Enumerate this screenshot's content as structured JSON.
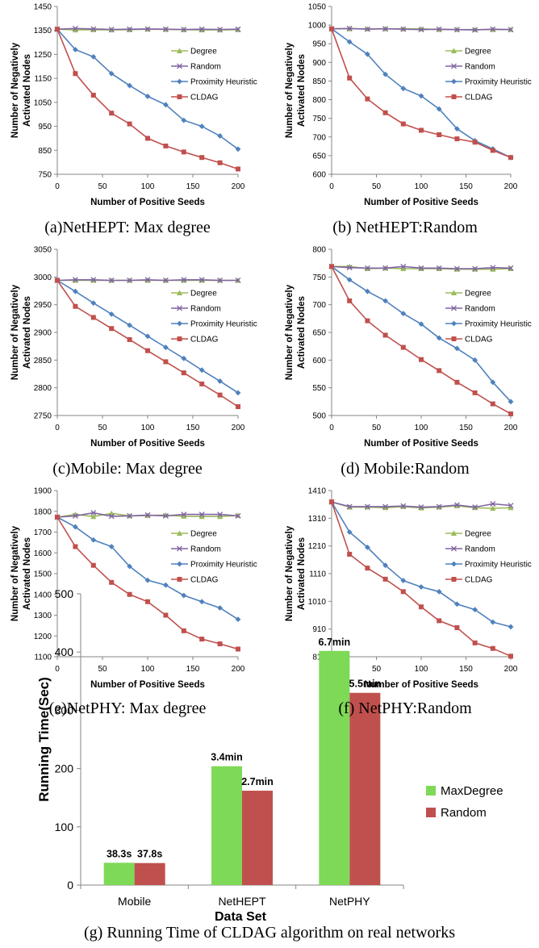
{
  "colors": {
    "Degree": "#9bbb59",
    "Random": "#8064a2",
    "Proximity Heuristic": "#4f81bd",
    "CLDAG": "#c0504d",
    "MaxDegree": "#7ed957",
    "RandomBar": "#c0504d"
  },
  "chart_data": [
    {
      "type": "line",
      "caption": "(a)NetHEPT: Max degree",
      "xlabel": "Number of Positive Seeds",
      "ylabel": [
        "Number of Negatively",
        "Activated Nodes"
      ],
      "xticks": [
        0,
        50,
        100,
        150,
        200
      ],
      "yticks": [
        750,
        850,
        950,
        1050,
        1150,
        1250,
        1350,
        1450
      ],
      "xlim": [
        0,
        200
      ],
      "ylim": [
        750,
        1450
      ],
      "x": [
        0,
        20,
        40,
        60,
        80,
        100,
        120,
        140,
        160,
        180,
        200
      ],
      "legend_position": "right",
      "series": [
        {
          "name": "Degree",
          "marker": "triangle",
          "values": [
            1355,
            1352,
            1353,
            1352,
            1353,
            1355,
            1354,
            1353,
            1352,
            1352,
            1353
          ]
        },
        {
          "name": "Random",
          "marker": "x",
          "values": [
            1355,
            1358,
            1356,
            1354,
            1355,
            1356,
            1355,
            1354,
            1355,
            1354,
            1355
          ]
        },
        {
          "name": "Proximity Heuristic",
          "marker": "diamond",
          "values": [
            1355,
            1270,
            1240,
            1170,
            1120,
            1075,
            1040,
            975,
            950,
            910,
            855
          ]
        },
        {
          "name": "CLDAG",
          "marker": "square",
          "values": [
            1355,
            1170,
            1080,
            1005,
            960,
            900,
            868,
            843,
            820,
            798,
            772
          ]
        }
      ]
    },
    {
      "type": "line",
      "caption": "(b) NetHEPT:Random",
      "xlabel": "Number of Positive Seeds",
      "ylabel": [
        "Number of Negatively",
        "Activated Nodes"
      ],
      "xticks": [
        0,
        50,
        100,
        150,
        200
      ],
      "yticks": [
        600,
        650,
        700,
        750,
        800,
        850,
        900,
        950,
        1000,
        1050
      ],
      "xlim": [
        0,
        200
      ],
      "ylim": [
        600,
        1050
      ],
      "x": [
        0,
        20,
        40,
        60,
        80,
        100,
        120,
        140,
        160,
        180,
        200
      ],
      "legend_position": "right",
      "series": [
        {
          "name": "Degree",
          "marker": "triangle",
          "values": [
            990,
            990,
            990,
            990,
            990,
            990,
            988,
            988,
            988,
            988,
            988
          ]
        },
        {
          "name": "Random",
          "marker": "x",
          "values": [
            990,
            991,
            989,
            990,
            989,
            988,
            989,
            988,
            987,
            989,
            988
          ]
        },
        {
          "name": "Proximity Heuristic",
          "marker": "diamond",
          "values": [
            990,
            955,
            922,
            868,
            830,
            810,
            775,
            722,
            690,
            668,
            645
          ]
        },
        {
          "name": "CLDAG",
          "marker": "square",
          "values": [
            990,
            858,
            802,
            765,
            735,
            718,
            706,
            695,
            686,
            664,
            645
          ]
        }
      ]
    },
    {
      "type": "line",
      "caption": "(c)Mobile: Max degree",
      "xlabel": "Number of Positive Seeds",
      "ylabel": [
        "Number of Negatively",
        "Activated Nodes"
      ],
      "xticks": [
        0,
        50,
        100,
        150,
        200
      ],
      "yticks": [
        2750,
        2800,
        2850,
        2900,
        2950,
        3000,
        3050
      ],
      "xlim": [
        0,
        200
      ],
      "ylim": [
        2750,
        3050
      ],
      "x": [
        0,
        20,
        40,
        60,
        80,
        100,
        120,
        140,
        160,
        180,
        200
      ],
      "legend_position": "right",
      "series": [
        {
          "name": "Degree",
          "marker": "triangle",
          "values": [
            2994,
            2994,
            2994,
            2994,
            2994,
            2994,
            2994,
            2994,
            2994,
            2994,
            2994
          ]
        },
        {
          "name": "Random",
          "marker": "x",
          "values": [
            2994,
            2995,
            2995,
            2994,
            2994,
            2995,
            2994,
            2995,
            2995,
            2994,
            2994
          ]
        },
        {
          "name": "Proximity Heuristic",
          "marker": "diamond",
          "values": [
            2994,
            2974,
            2953,
            2933,
            2913,
            2893,
            2873,
            2853,
            2832,
            2812,
            2791
          ]
        },
        {
          "name": "CLDAG",
          "marker": "square",
          "values": [
            2994,
            2947,
            2927,
            2907,
            2887,
            2867,
            2847,
            2827,
            2807,
            2787,
            2766
          ]
        }
      ]
    },
    {
      "type": "line",
      "caption": "(d) Mobile:Random",
      "xlabel": "Number of Positive Seeds",
      "ylabel": [
        "Number of Negatively",
        "Activated Nodes"
      ],
      "xticks": [
        0,
        50,
        100,
        150,
        200
      ],
      "yticks": [
        500,
        550,
        600,
        650,
        700,
        750,
        800
      ],
      "xlim": [
        0,
        200
      ],
      "ylim": [
        500,
        800
      ],
      "x": [
        0,
        20,
        40,
        60,
        80,
        100,
        120,
        140,
        160,
        180,
        200
      ],
      "legend_position": "right",
      "series": [
        {
          "name": "Degree",
          "marker": "triangle",
          "values": [
            769,
            769,
            765,
            766,
            765,
            765,
            765,
            764,
            764,
            764,
            765
          ]
        },
        {
          "name": "Random",
          "marker": "x",
          "values": [
            769,
            767,
            766,
            766,
            769,
            766,
            766,
            765,
            765,
            767,
            766
          ]
        },
        {
          "name": "Proximity Heuristic",
          "marker": "diamond",
          "values": [
            769,
            745,
            724,
            707,
            684,
            665,
            640,
            621,
            600,
            560,
            525
          ]
        },
        {
          "name": "CLDAG",
          "marker": "square",
          "values": [
            769,
            707,
            671,
            645,
            623,
            601,
            581,
            560,
            541,
            521,
            503
          ]
        }
      ]
    },
    {
      "type": "line",
      "caption": "(e)NetPHY: Max degree",
      "xlabel": "Number of Positive Seeds",
      "ylabel": [
        "Number of Negatively",
        "Activated Nodes"
      ],
      "xticks": [
        0,
        50,
        100,
        150,
        200
      ],
      "yticks": [
        1100,
        1200,
        1300,
        1400,
        1500,
        1600,
        1700,
        1800,
        1900
      ],
      "xlim": [
        0,
        200
      ],
      "ylim": [
        1100,
        1900
      ],
      "x": [
        0,
        20,
        40,
        60,
        80,
        100,
        120,
        140,
        160,
        180,
        200
      ],
      "legend_position": "right",
      "series": [
        {
          "name": "Degree",
          "marker": "triangle",
          "values": [
            1772,
            1785,
            1775,
            1790,
            1778,
            1780,
            1782,
            1776,
            1775,
            1775,
            1780
          ]
        },
        {
          "name": "Random",
          "marker": "x",
          "values": [
            1772,
            1778,
            1793,
            1776,
            1778,
            1782,
            1778,
            1785,
            1785,
            1785,
            1778
          ]
        },
        {
          "name": "Proximity Heuristic",
          "marker": "diamond",
          "values": [
            1772,
            1725,
            1662,
            1630,
            1535,
            1468,
            1445,
            1395,
            1365,
            1335,
            1280
          ]
        },
        {
          "name": "CLDAG",
          "marker": "square",
          "values": [
            1772,
            1630,
            1540,
            1458,
            1400,
            1365,
            1300,
            1225,
            1185,
            1162,
            1137
          ]
        }
      ]
    },
    {
      "type": "line",
      "caption": "(f) NetPHY:Random",
      "xlabel": "Number of Positive Seeds",
      "ylabel": [
        "Number of Negatively",
        "Activated Nodes"
      ],
      "xticks": [
        0,
        50,
        100,
        150,
        200
      ],
      "yticks": [
        810,
        910,
        1010,
        1110,
        1210,
        1310,
        1410
      ],
      "xlim": [
        0,
        200
      ],
      "ylim": [
        810,
        1410
      ],
      "x": [
        0,
        20,
        40,
        60,
        80,
        100,
        120,
        140,
        160,
        180,
        200
      ],
      "legend_position": "right",
      "series": [
        {
          "name": "Degree",
          "marker": "triangle",
          "values": [
            1369,
            1350,
            1350,
            1348,
            1352,
            1347,
            1350,
            1355,
            1348,
            1346,
            1348
          ]
        },
        {
          "name": "Random",
          "marker": "x",
          "values": [
            1369,
            1352,
            1352,
            1352,
            1354,
            1350,
            1352,
            1358,
            1350,
            1362,
            1356
          ]
        },
        {
          "name": "Proximity Heuristic",
          "marker": "diamond",
          "values": [
            1369,
            1260,
            1205,
            1140,
            1085,
            1062,
            1045,
            1000,
            980,
            935,
            918
          ]
        },
        {
          "name": "CLDAG",
          "marker": "square",
          "values": [
            1369,
            1180,
            1130,
            1090,
            1045,
            990,
            940,
            915,
            860,
            840,
            812
          ]
        }
      ]
    },
    {
      "type": "bar",
      "caption": "(g) Running Time of CLDAG algorithm on real networks",
      "xlabel": "Data Set",
      "ylabel": "Running Time(Sec)",
      "categories": [
        "Mobile",
        "NetHEPT",
        "NetPHY"
      ],
      "yticks": [
        0,
        100,
        200,
        300,
        400,
        500
      ],
      "ylim": [
        0,
        500
      ],
      "legend_position": "right",
      "series": [
        {
          "name": "MaxDegree",
          "values": [
            38.3,
            204,
            402
          ],
          "labels": [
            "38.3s",
            "3.4min",
            "6.7min"
          ]
        },
        {
          "name": "Random",
          "values": [
            37.8,
            162,
            330
          ],
          "labels": [
            "37.8s",
            "2.7min",
            "5.5min"
          ]
        }
      ]
    }
  ]
}
